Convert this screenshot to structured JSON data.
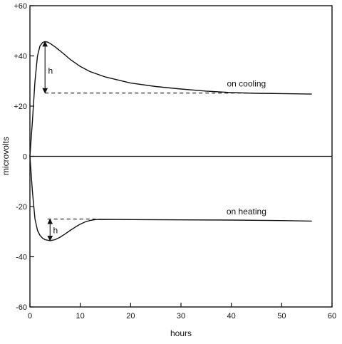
{
  "chart_data": {
    "type": "line",
    "title": "",
    "xlabel": "hours",
    "ylabel": "microvolts",
    "xlim": [
      0,
      60
    ],
    "ylim": [
      -60,
      60
    ],
    "x_ticks": [
      0,
      10,
      20,
      30,
      40,
      50,
      60
    ],
    "x_tick_labels": [
      "0",
      "10",
      "20",
      "30",
      "40",
      "50",
      "60"
    ],
    "y_ticks": [
      60,
      40,
      20,
      0,
      -20,
      -40,
      -60
    ],
    "y_tick_labels": [
      "+60",
      "+40",
      "+20",
      "0",
      "-20",
      "-40",
      "-60"
    ],
    "grid": false,
    "zero_line": true,
    "series": [
      {
        "style": "solid",
        "x": [
          0,
          0.5,
          1,
          1.5,
          2,
          2.5,
          3,
          3.5,
          4,
          5,
          6,
          7,
          8,
          10,
          12,
          15,
          20,
          25,
          30,
          35,
          40,
          45,
          50,
          56
        ],
        "y": [
          0,
          14,
          30,
          40,
          44,
          45.3,
          45.7,
          45.5,
          45,
          43.6,
          42,
          40.3,
          38.6,
          35.8,
          33.7,
          31.6,
          29.2,
          27.8,
          26.8,
          26,
          25.4,
          25.1,
          25,
          24.8
        ]
      },
      {
        "style": "solid",
        "x": [
          0,
          0.5,
          1,
          1.5,
          2,
          2.5,
          3,
          4,
          5,
          6,
          7,
          8,
          9,
          10,
          11,
          12,
          13,
          14,
          20,
          30,
          40,
          50,
          56
        ],
        "y": [
          0,
          -14,
          -25,
          -29.5,
          -31.5,
          -32.6,
          -33.2,
          -33.6,
          -33.2,
          -32.2,
          -30.9,
          -29.5,
          -28.2,
          -27,
          -26.1,
          -25.5,
          -25.2,
          -25.1,
          -25.2,
          -25.3,
          -25.4,
          -25.6,
          -25.8
        ]
      },
      {
        "style": "dashed",
        "x": [
          3,
          45
        ],
        "y": [
          25.2,
          25.2
        ]
      },
      {
        "style": "dashed",
        "x": [
          3.5,
          13
        ],
        "y": [
          -25,
          -25
        ]
      }
    ],
    "annotations": [
      {
        "text": "on cooling",
        "x": 43,
        "y": 29
      },
      {
        "text": "on heating",
        "x": 43,
        "y": -22
      },
      {
        "text": "h",
        "x": 3.6,
        "y": 34
      },
      {
        "text": "h",
        "x": 4.6,
        "y": -29.5
      }
    ],
    "arrows": [
      {
        "x": 3,
        "y_from": 25.2,
        "y_to": 45.7
      },
      {
        "x": 4,
        "y_from": -25,
        "y_to": -33.6
      }
    ]
  }
}
